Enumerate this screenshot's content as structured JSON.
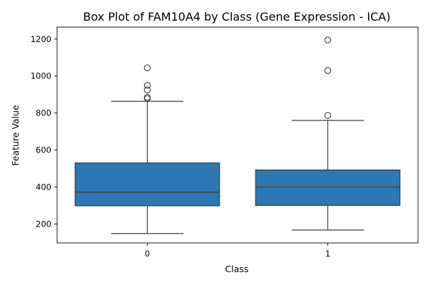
{
  "chart_data": {
    "type": "box",
    "title": "Box Plot of FAM10A4 by Class (Gene Expression - ICA)",
    "xlabel": "Class",
    "ylabel": "Feature Value",
    "categories": [
      "0",
      "1"
    ],
    "yticks": [
      200,
      400,
      600,
      800,
      1000,
      1200
    ],
    "ylim": [
      97,
      1265
    ],
    "box_color": "#2d77b3",
    "line_color": "#3f3f3f",
    "boxes": [
      {
        "category": "0",
        "whisker_low": 148,
        "q1": 298,
        "median": 372,
        "q3": 530,
        "whisker_high": 863,
        "outliers": [
          878,
          885,
          925,
          950,
          1045
        ]
      },
      {
        "category": "1",
        "whisker_low": 167,
        "q1": 300,
        "median": 400,
        "q3": 492,
        "whisker_high": 760,
        "outliers": [
          787,
          1030,
          1195
        ]
      }
    ],
    "grid": false,
    "legend": "none"
  }
}
